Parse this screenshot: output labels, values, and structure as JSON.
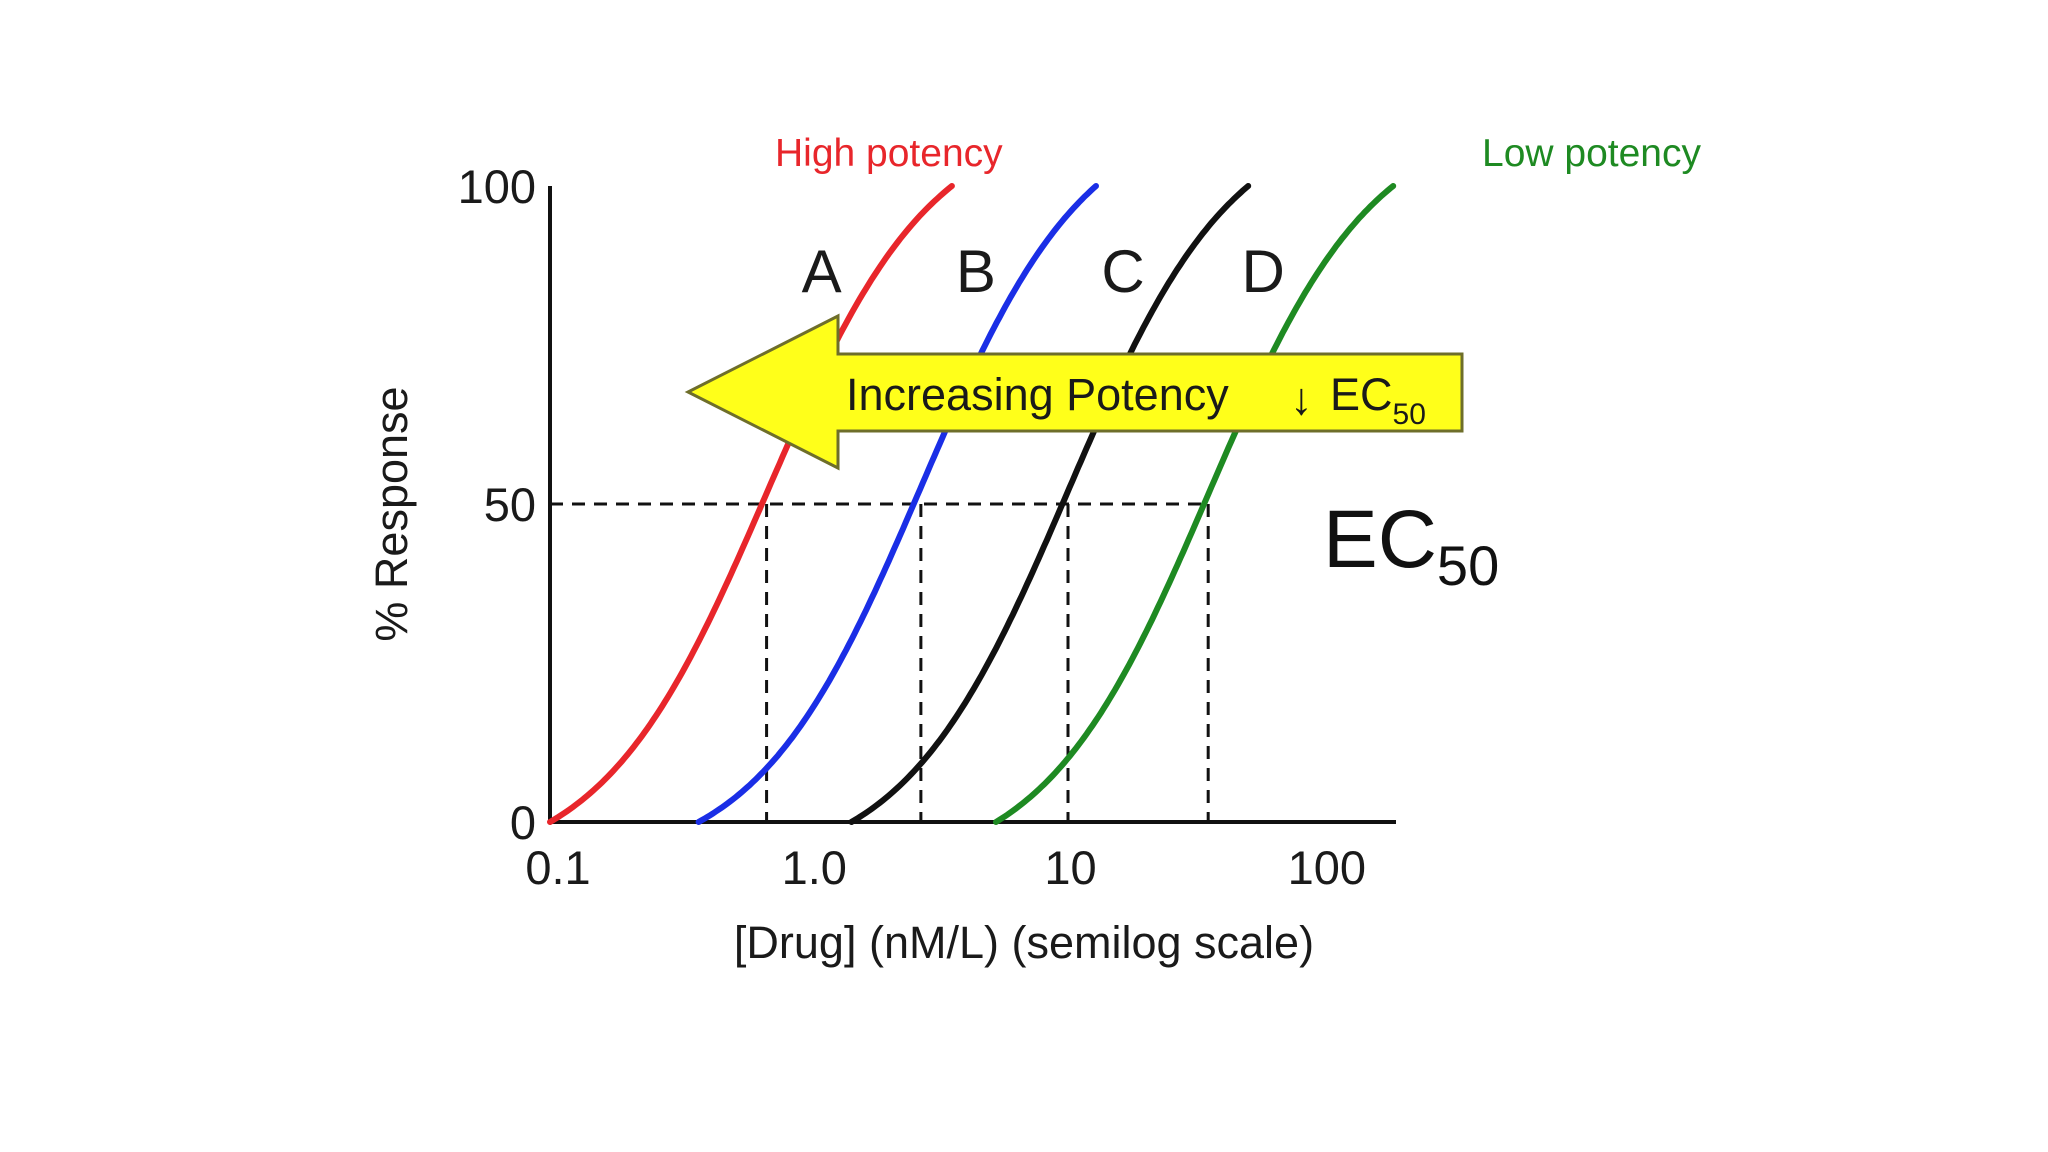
{
  "chart_data": {
    "type": "line",
    "x_scale": "log",
    "xlim": [
      0.1,
      200
    ],
    "ylim": [
      0,
      100
    ],
    "xlabel": "[Drug] (nM/L) (semilog scale)",
    "ylabel": "% Response",
    "x_ticks": [
      {
        "value": 0.1,
        "label": "0.1"
      },
      {
        "value": 1,
        "label": "1.0"
      },
      {
        "value": 10,
        "label": "10"
      },
      {
        "value": 100,
        "label": "100"
      }
    ],
    "y_ticks": [
      {
        "value": 0,
        "label": "0"
      },
      {
        "value": 50,
        "label": "50"
      },
      {
        "value": 100,
        "label": "100"
      }
    ],
    "reference_line_y": 50,
    "series": [
      {
        "name": "A",
        "ec50": 0.7,
        "x_start": 0.1,
        "x_end": 3.7,
        "color": "#e8262b"
      },
      {
        "name": "B",
        "ec50": 2.8,
        "x_start": 0.38,
        "x_end": 13.5,
        "color": "#1a2ee6"
      },
      {
        "name": "C",
        "ec50": 10.5,
        "x_start": 1.5,
        "x_end": 53,
        "color": "#111111"
      },
      {
        "name": "D",
        "ec50": 37,
        "x_start": 5.5,
        "x_end": 195,
        "color": "#1e8a22"
      }
    ],
    "annotations": {
      "high_potency": "High potency",
      "low_potency": "Low potency",
      "arrow_text": "Increasing Potency",
      "arrow_symbol": "↓",
      "ec50_main": "EC",
      "ec50_sub": "50"
    },
    "colors": {
      "arrow_fill": "#ffff1a",
      "arrow_stroke": "#6e6e2a",
      "high_potency": "#e8262b",
      "low_potency": "#1e8a22"
    }
  }
}
